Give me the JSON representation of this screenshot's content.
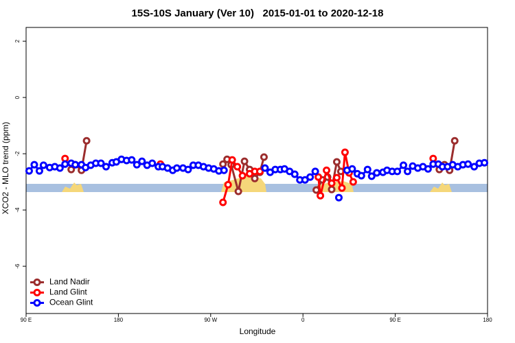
{
  "chart_data": {
    "type": "line",
    "title": "15S-10S January (Ver 10)   2015-01-01 to 2020-12-18",
    "x_label": "Longitude",
    "y_label": "XCO2 - MLO trend (ppm)",
    "xlim": [
      90,
      540
    ],
    "ylim": [
      -7.68,
      2.49
    ],
    "xticks": [
      {
        "value": 90,
        "label": "90 E"
      },
      {
        "value": 180,
        "label": "180"
      },
      {
        "value": 270,
        "label": "90 W"
      },
      {
        "value": 360,
        "label": "0"
      },
      {
        "value": 450,
        "label": "90 E"
      },
      {
        "value": 540,
        "label": "180"
      }
    ],
    "yticks": [
      2,
      0,
      -2,
      -4,
      -6
    ],
    "legend": "bottomleft",
    "series": [
      {
        "name": "Land Nadir",
        "color": "#9b2d2d",
        "x": [
          134,
          138,
          144,
          149,
          200,
          282,
          286,
          290,
          297,
          303,
          308,
          313,
          318,
          322,
          340,
          373,
          379,
          384,
          388,
          393,
          397,
          450,
          493,
          498,
          503,
          508
        ],
        "values": [
          -2.56,
          -2.39,
          -2.59,
          -1.54,
          null,
          -2.37,
          -2.2,
          -2.39,
          -3.34,
          -2.27,
          -2.56,
          -2.88,
          -2.66,
          -2.12,
          null,
          -3.29,
          -2.93,
          -2.83,
          -3.27,
          -2.29,
          -2.63,
          null,
          -2.56,
          -2.39,
          -2.59,
          -1.54
        ]
      },
      {
        "name": "Land Glint",
        "color": "#ff0000",
        "x": [
          128,
          170,
          221,
          250,
          282,
          287,
          291,
          296,
          301,
          308,
          313,
          318,
          340,
          375,
          377,
          383,
          388,
          393,
          398,
          401,
          405,
          409,
          450,
          487
        ],
        "values": [
          -2.17,
          null,
          -2.37,
          null,
          -3.73,
          -3.1,
          -2.22,
          -2.46,
          -2.78,
          -2.71,
          -2.63,
          -2.63,
          null,
          -2.83,
          -3.49,
          -2.59,
          -3.05,
          -2.85,
          -3.22,
          -1.95,
          -2.68,
          -3.0,
          null,
          -2.17
        ]
      },
      {
        "name": "Ocean Glint",
        "color": "#0000ff",
        "x": [
          93,
          98,
          103,
          107,
          113,
          118,
          123,
          128,
          134,
          138,
          144,
          148,
          153,
          158,
          163,
          168,
          174,
          178,
          183,
          188,
          193,
          198,
          203,
          208,
          213,
          219,
          223,
          228,
          233,
          237,
          243,
          248,
          253,
          258,
          263,
          268,
          273,
          278,
          283,
          300,
          323,
          328,
          333,
          338,
          342,
          347,
          352,
          357,
          362,
          367,
          372,
          380,
          395,
          399,
          403,
          408,
          413,
          417,
          423,
          427,
          432,
          438,
          442,
          447,
          452,
          458,
          462,
          467,
          472,
          477,
          482,
          487,
          492,
          496,
          501,
          506,
          511,
          516,
          521,
          527,
          532,
          537
        ],
        "values": [
          -2.61,
          -2.39,
          -2.61,
          -2.41,
          -2.49,
          -2.46,
          -2.51,
          -2.37,
          -2.34,
          -2.39,
          -2.39,
          -2.49,
          -2.41,
          -2.34,
          -2.34,
          -2.46,
          -2.32,
          -2.29,
          -2.2,
          -2.24,
          -2.22,
          -2.39,
          -2.27,
          -2.41,
          -2.34,
          -2.46,
          -2.46,
          -2.51,
          -2.59,
          -2.51,
          -2.51,
          -2.56,
          -2.41,
          -2.41,
          -2.46,
          -2.51,
          -2.54,
          -2.61,
          -2.59,
          null,
          -2.51,
          -2.66,
          -2.56,
          -2.56,
          -2.54,
          -2.63,
          -2.73,
          -2.93,
          -2.93,
          -2.83,
          -2.63,
          null,
          -3.56,
          null,
          -2.59,
          -2.54,
          -2.71,
          -2.78,
          -2.56,
          -2.8,
          -2.68,
          -2.66,
          -2.59,
          -2.63,
          -2.63,
          -2.41,
          -2.63,
          -2.44,
          -2.51,
          -2.46,
          -2.54,
          -2.37,
          -2.37,
          -2.46,
          -2.46,
          -2.39,
          -2.46,
          -2.39,
          -2.37,
          -2.46,
          -2.34,
          -2.32
        ]
      }
    ]
  }
}
